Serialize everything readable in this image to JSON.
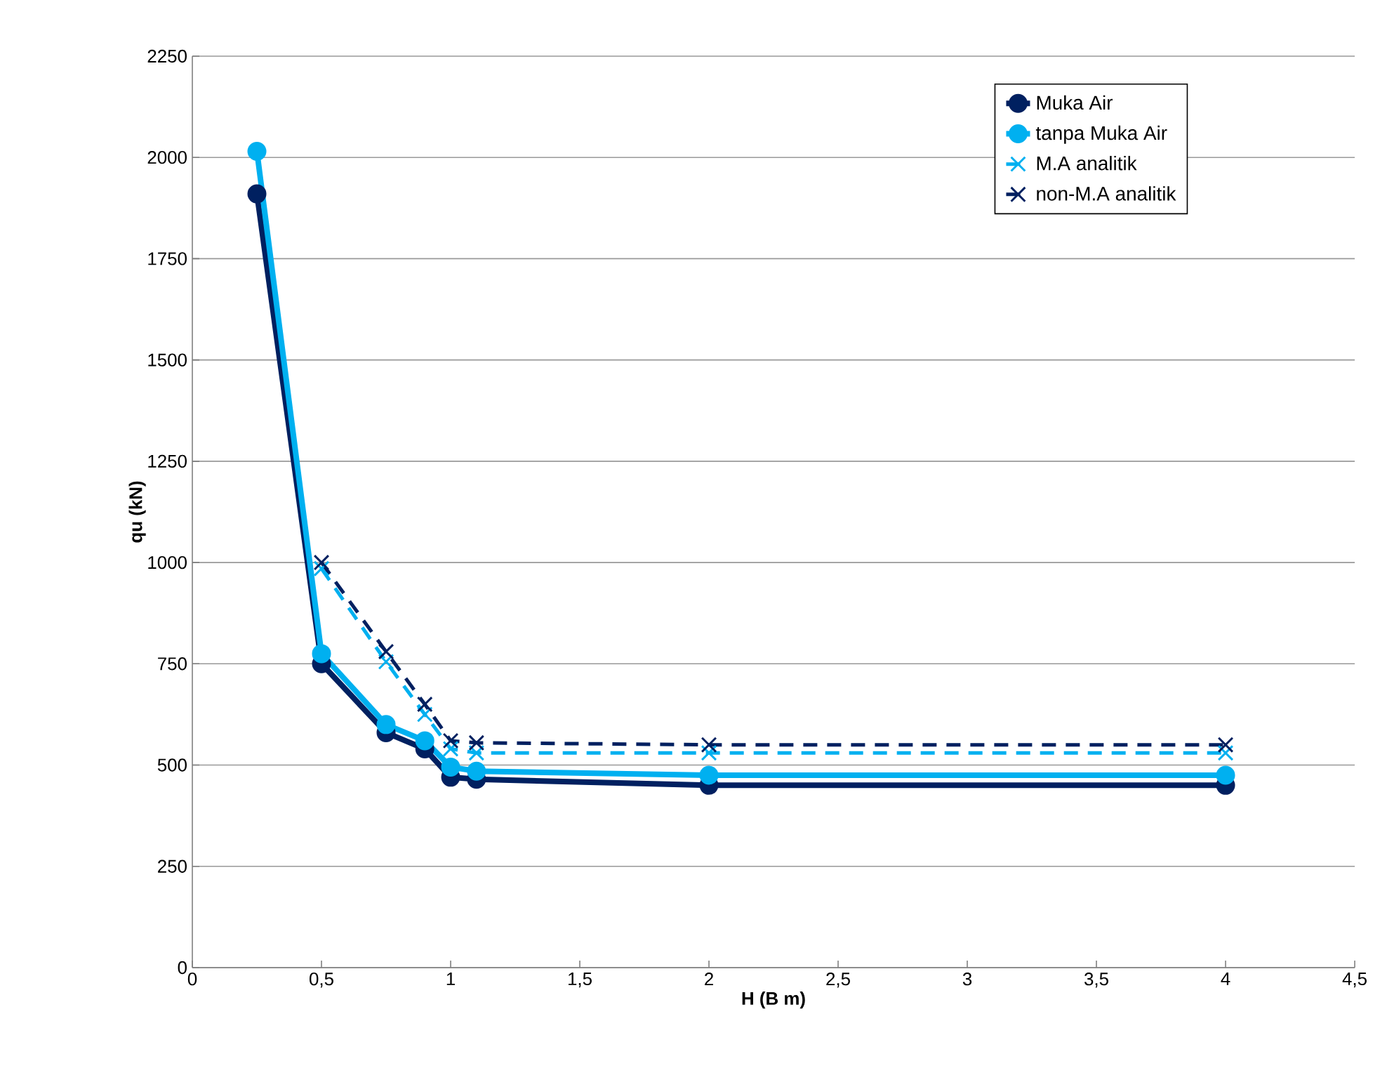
{
  "chart_data": {
    "type": "line",
    "xlabel": "H (B m)",
    "ylabel": "qu (kN)",
    "x": [
      0.25,
      0.5,
      0.75,
      0.9,
      1.0,
      1.1,
      2,
      4
    ],
    "series": [
      {
        "name": "Muka Air",
        "color": "#002060",
        "marker": "circle",
        "line_style": "solid",
        "values": [
          1910,
          750,
          580,
          540,
          470,
          465,
          450,
          450
        ]
      },
      {
        "name": "tanpa Muka Air",
        "color": "#00b0f0",
        "marker": "circle",
        "line_style": "solid",
        "values": [
          2015,
          775,
          600,
          560,
          495,
          485,
          475,
          475
        ]
      },
      {
        "name": "M.A analitik",
        "color": "#00b0f0",
        "marker": "cross",
        "line_style": "dashed",
        "x": [
          0.5,
          0.75,
          0.9,
          1.0,
          1.1,
          2,
          4
        ],
        "values": [
          985,
          755,
          625,
          540,
          530,
          530,
          530
        ]
      },
      {
        "name": "non-M.A analitik",
        "color": "#002060",
        "marker": "cross",
        "line_style": "dashed",
        "x": [
          0.5,
          0.75,
          0.9,
          1.0,
          1.1,
          2,
          4
        ],
        "values": [
          1000,
          780,
          650,
          560,
          555,
          550,
          550
        ]
      }
    ],
    "xlim": [
      0,
      4.5
    ],
    "ylim": [
      0,
      2250
    ],
    "xticks": [
      0,
      {
        "value": 0.5,
        "label": "0,5"
      },
      1,
      {
        "value": 1.5,
        "label": "1,5"
      },
      2,
      {
        "value": 2.5,
        "label": "2,5"
      },
      3,
      {
        "value": 3.5,
        "label": "3,5"
      },
      4,
      {
        "value": 4.5,
        "label": "4,5"
      }
    ],
    "yticks": [
      0,
      250,
      500,
      750,
      1000,
      1250,
      1500,
      1750,
      2000,
      2250
    ],
    "grid": "y",
    "legend": "top right"
  }
}
